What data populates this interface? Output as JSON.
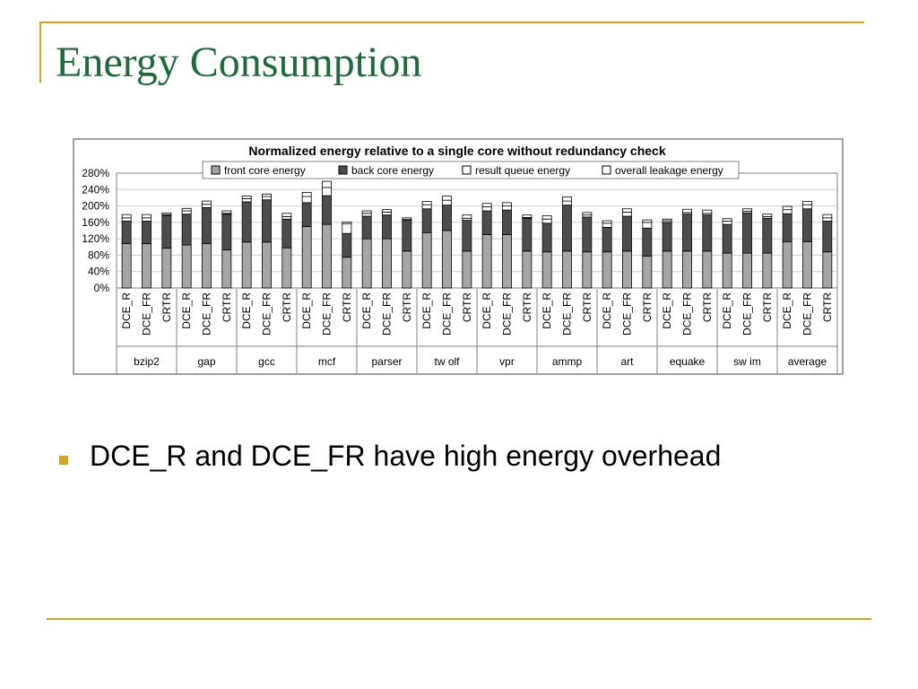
{
  "slide": {
    "title": "Energy Consumption",
    "bullets": [
      "DCE_R and DCE_FR have high energy overhead"
    ],
    "accent_color": "#d9a41d",
    "title_color": "#1e6b3a"
  },
  "chart_data": {
    "type": "bar",
    "stacked": true,
    "title": "Normalized energy relative to a single core without redundancy check",
    "ylim": [
      0,
      280
    ],
    "yticks": [
      "0%",
      "40%",
      "80%",
      "120%",
      "160%",
      "200%",
      "240%",
      "280%"
    ],
    "grid": true,
    "legend_position": "top",
    "groups": [
      "bzip2",
      "gap",
      "gcc",
      "mcf",
      "parser",
      "twolf",
      "vpr",
      "ammp",
      "art",
      "equake",
      "swim",
      "average"
    ],
    "group_labels": [
      "bzip2",
      "gap",
      "gcc",
      "mcf",
      "parser",
      "tw olf",
      "vpr",
      "ammp",
      "art",
      "equake",
      "sw im",
      "average"
    ],
    "configs": [
      "DCE_R",
      "DCE_FR",
      "CRTR"
    ],
    "series": [
      {
        "name": "front core energy",
        "color": "#a6a6a6",
        "values": [
          108,
          108,
          97,
          105,
          108,
          93,
          112,
          112,
          98,
          150,
          155,
          75,
          120,
          120,
          90,
          135,
          140,
          90,
          130,
          130,
          90,
          88,
          90,
          88,
          88,
          90,
          78,
          90,
          90,
          90,
          85,
          85,
          85,
          113,
          113,
          88
        ]
      },
      {
        "name": "back core energy",
        "color": "#4d4d4d",
        "values": [
          55,
          55,
          80,
          75,
          88,
          87,
          98,
          103,
          70,
          58,
          70,
          58,
          55,
          58,
          75,
          58,
          62,
          75,
          58,
          60,
          80,
          70,
          112,
          85,
          60,
          85,
          68,
          70,
          90,
          88,
          70,
          98,
          85,
          68,
          80,
          75
        ]
      },
      {
        "name": "result queue energy",
        "color": "#ffffff",
        "values": [
          8,
          8,
          2,
          8,
          8,
          2,
          8,
          8,
          6,
          15,
          20,
          24,
          7,
          7,
          2,
          10,
          12,
          5,
          10,
          10,
          2,
          10,
          10,
          5,
          10,
          10,
          14,
          4,
          4,
          4,
          8,
          4,
          4,
          10,
          10,
          8
        ]
      },
      {
        "name": "overall leakage energy",
        "color": "#ffffff",
        "values": [
          8,
          8,
          4,
          6,
          8,
          6,
          6,
          6,
          8,
          10,
          15,
          4,
          6,
          6,
          4,
          8,
          10,
          8,
          8,
          8,
          6,
          8,
          10,
          6,
          6,
          8,
          6,
          4,
          8,
          8,
          6,
          6,
          6,
          8,
          8,
          8
        ]
      }
    ]
  }
}
